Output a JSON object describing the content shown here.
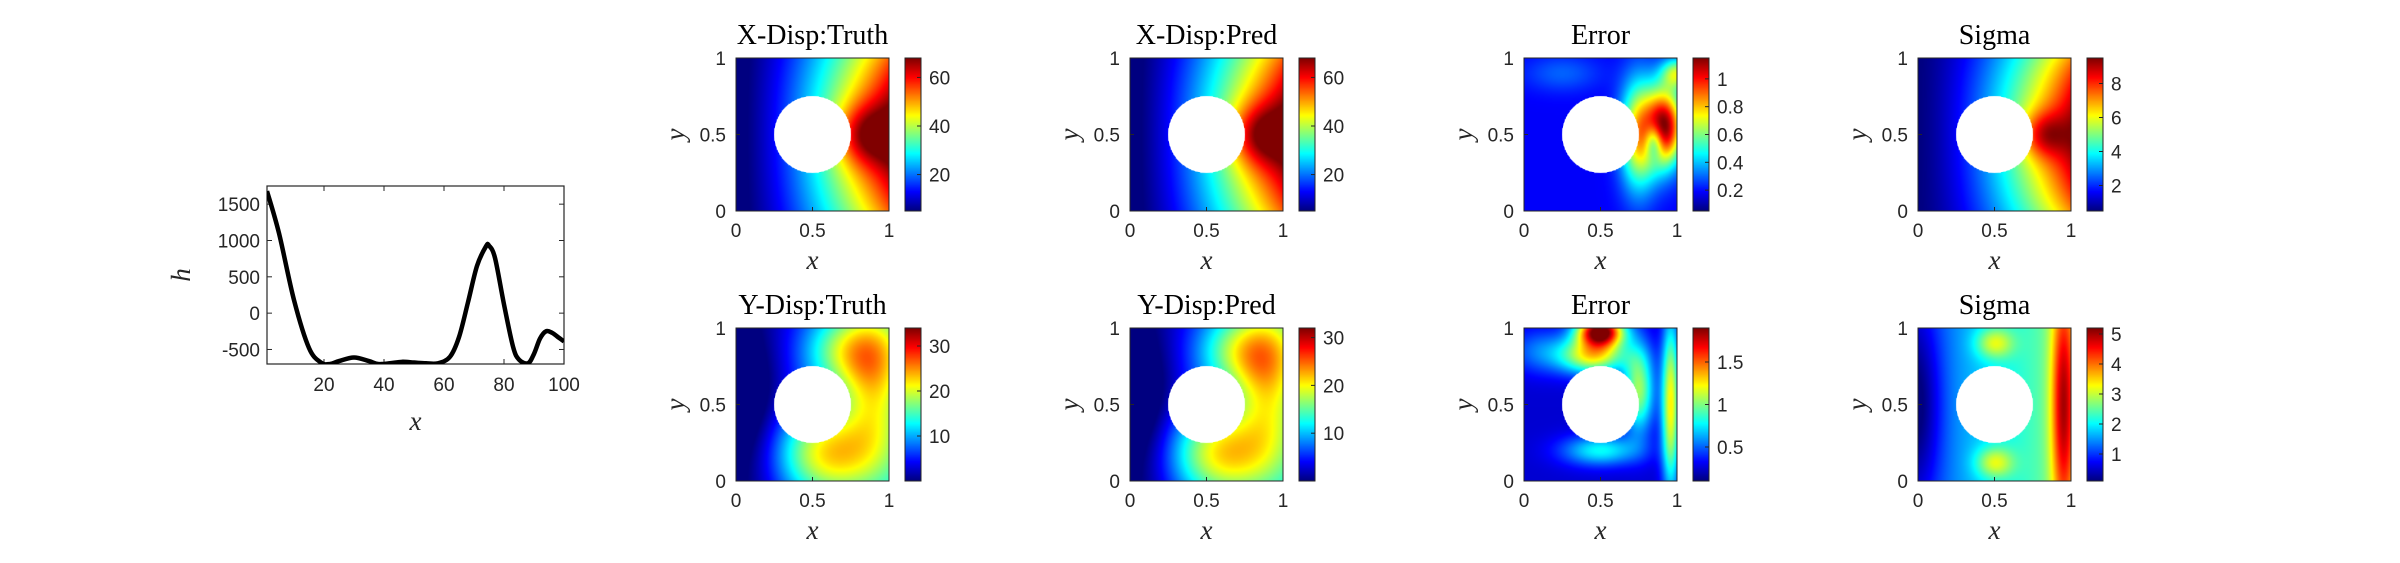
{
  "colors": {
    "curve": "#000000",
    "axis": "#262626",
    "hole": "#ffffff"
  },
  "colormap": "jet",
  "chart_data": [
    {
      "type": "line",
      "xlabel": "x",
      "ylabel": "h",
      "xlim": [
        1,
        100
      ],
      "ylim": [
        -700,
        1750
      ],
      "xticks": [
        "20",
        "40",
        "60",
        "80",
        "100"
      ],
      "yticks": [
        "1500",
        "1000",
        "500",
        "0",
        "-500"
      ],
      "grid": false,
      "x": [
        1,
        5,
        10,
        15,
        19,
        22,
        25,
        30,
        35,
        38,
        42,
        46,
        50,
        54,
        58,
        62,
        65,
        68,
        71,
        74,
        75,
        77,
        80,
        83,
        85,
        88,
        90,
        92,
        94,
        96,
        98,
        100
      ],
      "y": [
        1680,
        1100,
        180,
        -480,
        -680,
        -700,
        -660,
        -610,
        -660,
        -700,
        -690,
        -670,
        -680,
        -690,
        -690,
        -600,
        -330,
        150,
        650,
        920,
        930,
        760,
        120,
        -460,
        -640,
        -690,
        -560,
        -350,
        -250,
        -270,
        -330,
        -390
      ]
    },
    {
      "type": "heatmap",
      "title": "X-Disp:Truth",
      "xlabel": "x",
      "ylabel": "y",
      "xticks": [
        "0",
        "0.5",
        "1"
      ],
      "yticks": [
        "0",
        "0.5",
        "1"
      ],
      "colorbar_range": [
        5,
        68
      ],
      "colorbar_ticks": [
        20,
        40,
        60
      ],
      "field": "x-displacement",
      "hole": {
        "cx": 0.5,
        "cy": 0.5,
        "r": 0.25
      }
    },
    {
      "type": "heatmap",
      "title": "X-Disp:Pred",
      "xlabel": "x",
      "ylabel": "y",
      "xticks": [
        "0",
        "0.5",
        "1"
      ],
      "yticks": [
        "0",
        "0.5",
        "1"
      ],
      "colorbar_range": [
        5,
        68
      ],
      "colorbar_ticks": [
        20,
        40,
        60
      ],
      "field": "x-displacement",
      "hole": {
        "cx": 0.5,
        "cy": 0.5,
        "r": 0.25
      }
    },
    {
      "type": "heatmap",
      "title": "Error",
      "xlabel": "x",
      "ylabel": "y",
      "xticks": [
        "0",
        "0.5",
        "1"
      ],
      "yticks": [
        "0",
        "0.5",
        "1"
      ],
      "colorbar_range": [
        0.05,
        1.15
      ],
      "colorbar_ticks": [
        0.2,
        0.4,
        0.6,
        0.8,
        1
      ],
      "field": "x-error",
      "hole": {
        "cx": 0.5,
        "cy": 0.5,
        "r": 0.25
      }
    },
    {
      "type": "heatmap",
      "title": "Sigma",
      "xlabel": "x",
      "ylabel": "y",
      "xticks": [
        "0",
        "0.5",
        "1"
      ],
      "yticks": [
        "0",
        "0.5",
        "1"
      ],
      "colorbar_range": [
        0.5,
        9.5
      ],
      "colorbar_ticks": [
        2,
        4,
        6,
        8
      ],
      "field": "x-sigma",
      "hole": {
        "cx": 0.5,
        "cy": 0.5,
        "r": 0.25
      }
    },
    {
      "type": "heatmap",
      "title": "Y-Disp:Truth",
      "xlabel": "x",
      "ylabel": "y",
      "xticks": [
        "0",
        "0.5",
        "1"
      ],
      "yticks": [
        "0",
        "0.5",
        "1"
      ],
      "colorbar_range": [
        0,
        34
      ],
      "colorbar_ticks": [
        10,
        20,
        30
      ],
      "field": "y-displacement",
      "hole": {
        "cx": 0.5,
        "cy": 0.5,
        "r": 0.25
      }
    },
    {
      "type": "heatmap",
      "title": "Y-Disp:Pred",
      "xlabel": "x",
      "ylabel": "y",
      "xticks": [
        "0",
        "0.5",
        "1"
      ],
      "yticks": [
        "0",
        "0.5",
        "1"
      ],
      "colorbar_range": [
        0,
        32
      ],
      "colorbar_ticks": [
        10,
        20,
        30
      ],
      "field": "y-displacement",
      "hole": {
        "cx": 0.5,
        "cy": 0.5,
        "r": 0.25
      }
    },
    {
      "type": "heatmap",
      "title": "Error",
      "xlabel": "x",
      "ylabel": "y",
      "xticks": [
        "0",
        "0.5",
        "1"
      ],
      "yticks": [
        "0",
        "0.5",
        "1"
      ],
      "colorbar_range": [
        0.1,
        1.9
      ],
      "colorbar_ticks": [
        0.5,
        1,
        1.5
      ],
      "field": "y-error",
      "hole": {
        "cx": 0.5,
        "cy": 0.5,
        "r": 0.25
      }
    },
    {
      "type": "heatmap",
      "title": "Sigma",
      "xlabel": "x",
      "ylabel": "y",
      "xticks": [
        "0",
        "0.5",
        "1"
      ],
      "yticks": [
        "0",
        "0.5",
        "1"
      ],
      "colorbar_range": [
        0.1,
        5.2
      ],
      "colorbar_ticks": [
        1,
        2,
        3,
        4,
        5
      ],
      "field": "y-sigma",
      "hole": {
        "cx": 0.5,
        "cy": 0.5,
        "r": 0.25
      }
    }
  ]
}
